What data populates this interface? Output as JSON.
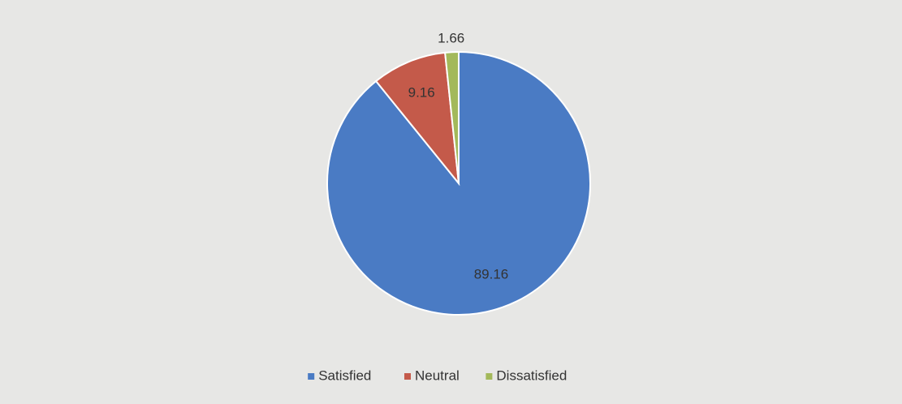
{
  "chart_data": {
    "type": "pie",
    "categories": [
      "Satisfied",
      "Neutral",
      "Dissatisfied"
    ],
    "values": [
      89.16,
      9.16,
      1.66
    ],
    "colors": [
      "#4a7bc4",
      "#c45a4a",
      "#a3b95a"
    ],
    "legend": "bottom"
  }
}
